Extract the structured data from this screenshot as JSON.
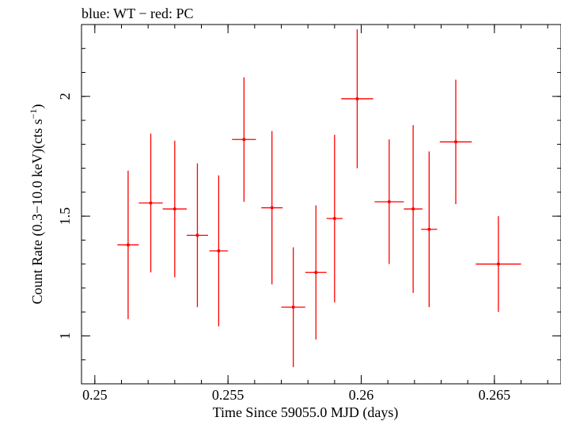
{
  "chart_data": {
    "type": "scatter",
    "title": "blue: WT − red: PC",
    "xlabel": "Time Since 59055.0 MJD (days)",
    "ylabel_main": "Count Rate (0.3−10.0 keV)(cts s",
    "ylabel_sup": "−1",
    "ylabel_close": ")",
    "xlim": [
      0.2495,
      0.2675
    ],
    "ylim": [
      0.8,
      2.3
    ],
    "xticks": [
      0.25,
      0.255,
      0.26,
      0.265
    ],
    "xtick_labels": [
      "0.25",
      "0.255",
      "0.26",
      "0.265"
    ],
    "yticks": [
      1,
      1.5,
      2
    ],
    "ytick_labels": [
      "1",
      "1.5",
      "2"
    ],
    "grid": false,
    "series": [
      {
        "color": "#ff0000",
        "points": [
          {
            "x": 0.25125,
            "xerr": 0.0004,
            "y": 1.38,
            "yerr": 0.31
          },
          {
            "x": 0.2521,
            "xerr": 0.00045,
            "y": 1.555,
            "yerr": 0.29
          },
          {
            "x": 0.253,
            "xerr": 0.00045,
            "y": 1.53,
            "yerr": 0.285
          },
          {
            "x": 0.25385,
            "xerr": 0.0004,
            "y": 1.42,
            "yerr": 0.3
          },
          {
            "x": 0.25465,
            "xerr": 0.00035,
            "y": 1.355,
            "yerr": 0.315
          },
          {
            "x": 0.2556,
            "xerr": 0.00045,
            "y": 1.82,
            "yerr": 0.26
          },
          {
            "x": 0.25665,
            "xerr": 0.0004,
            "y": 1.535,
            "yerr": 0.32
          },
          {
            "x": 0.25745,
            "xerr": 0.00045,
            "y": 1.12,
            "yerr": 0.25
          },
          {
            "x": 0.2583,
            "xerr": 0.0004,
            "y": 1.265,
            "yerr": 0.28
          },
          {
            "x": 0.259,
            "xerr": 0.0003,
            "y": 1.49,
            "yerr": 0.35
          },
          {
            "x": 0.25985,
            "xerr": 0.0006,
            "y": 1.99,
            "yerr": 0.29
          },
          {
            "x": 0.26105,
            "xerr": 0.00055,
            "y": 1.56,
            "yerr": 0.26
          },
          {
            "x": 0.26195,
            "xerr": 0.00035,
            "y": 1.53,
            "yerr": 0.35
          },
          {
            "x": 0.26255,
            "xerr": 0.0003,
            "y": 1.445,
            "yerr": 0.325
          },
          {
            "x": 0.26355,
            "xerr": 0.0006,
            "y": 1.81,
            "yerr": 0.26
          },
          {
            "x": 0.26515,
            "xerr": 0.00085,
            "y": 1.3,
            "yerr": 0.2
          }
        ]
      }
    ]
  }
}
